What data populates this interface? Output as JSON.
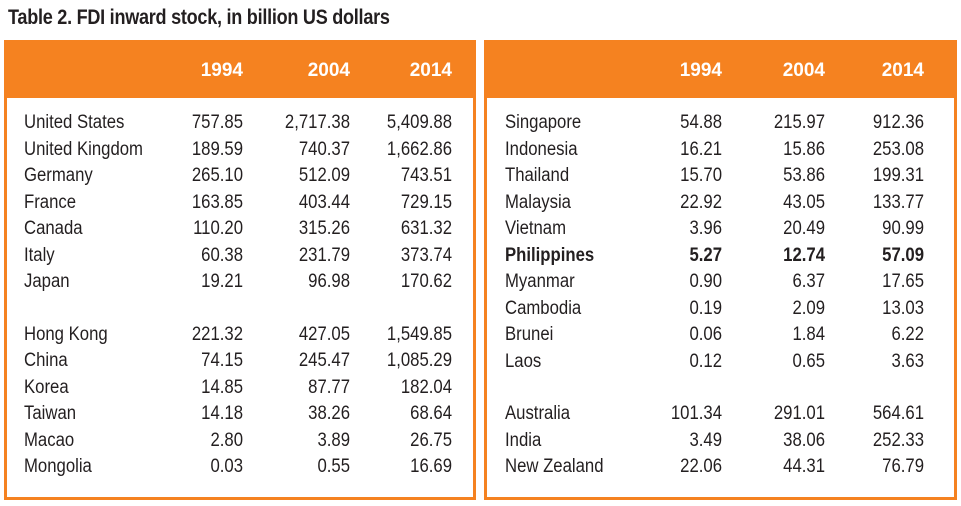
{
  "title": "Table 2. FDI inward stock, in billion US dollars",
  "years": [
    "1994",
    "2004",
    "2014"
  ],
  "colors": {
    "accent": "#f58220",
    "text": "#231f20"
  },
  "left_table": {
    "groups": [
      [
        {
          "name": "United States",
          "v1994": "757.85",
          "v2004": "2,717.38",
          "v2014": "5,409.88"
        },
        {
          "name": "United Kingdom",
          "v1994": "189.59",
          "v2004": "740.37",
          "v2014": "1,662.86"
        },
        {
          "name": "Germany",
          "v1994": "265.10",
          "v2004": "512.09",
          "v2014": "743.51"
        },
        {
          "name": "France",
          "v1994": "163.85",
          "v2004": "403.44",
          "v2014": "729.15"
        },
        {
          "name": "Canada",
          "v1994": "110.20",
          "v2004": "315.26",
          "v2014": "631.32"
        },
        {
          "name": "Italy",
          "v1994": "60.38",
          "v2004": "231.79",
          "v2014": "373.74"
        },
        {
          "name": "Japan",
          "v1994": "19.21",
          "v2004": "96.98",
          "v2014": "170.62"
        }
      ],
      [
        {
          "name": "Hong Kong",
          "v1994": "221.32",
          "v2004": "427.05",
          "v2014": "1,549.85"
        },
        {
          "name": "China",
          "v1994": "74.15",
          "v2004": "245.47",
          "v2014": "1,085.29"
        },
        {
          "name": "Korea",
          "v1994": "14.85",
          "v2004": "87.77",
          "v2014": "182.04"
        },
        {
          "name": "Taiwan",
          "v1994": "14.18",
          "v2004": "38.26",
          "v2014": "68.64"
        },
        {
          "name": "Macao",
          "v1994": "2.80",
          "v2004": "3.89",
          "v2014": "26.75"
        },
        {
          "name": "Mongolia",
          "v1994": "0.03",
          "v2004": "0.55",
          "v2014": "16.69"
        }
      ]
    ]
  },
  "right_table": {
    "groups": [
      [
        {
          "name": "Singapore",
          "v1994": "54.88",
          "v2004": "215.97",
          "v2014": "912.36"
        },
        {
          "name": "Indonesia",
          "v1994": "16.21",
          "v2004": "15.86",
          "v2014": "253.08"
        },
        {
          "name": "Thailand",
          "v1994": "15.70",
          "v2004": "53.86",
          "v2014": "199.31"
        },
        {
          "name": "Malaysia",
          "v1994": "22.92",
          "v2004": "43.05",
          "v2014": "133.77"
        },
        {
          "name": "Vietnam",
          "v1994": "3.96",
          "v2004": "20.49",
          "v2014": "90.99"
        },
        {
          "name": "Philippines",
          "v1994": "5.27",
          "v2004": "12.74",
          "v2014": "57.09",
          "bold": true
        },
        {
          "name": "Myanmar",
          "v1994": "0.90",
          "v2004": "6.37",
          "v2014": "17.65"
        },
        {
          "name": "Cambodia",
          "v1994": "0.19",
          "v2004": "2.09",
          "v2014": "13.03"
        },
        {
          "name": "Brunei",
          "v1994": "0.06",
          "v2004": "1.84",
          "v2014": "6.22"
        },
        {
          "name": "Laos",
          "v1994": "0.12",
          "v2004": "0.65",
          "v2014": "3.63"
        }
      ],
      [
        {
          "name": "Australia",
          "v1994": "101.34",
          "v2004": "291.01",
          "v2014": "564.61"
        },
        {
          "name": "India",
          "v1994": "3.49",
          "v2004": "38.06",
          "v2014": "252.33"
        },
        {
          "name": "New Zealand",
          "v1994": "22.06",
          "v2004": "44.31",
          "v2014": "76.79"
        }
      ]
    ]
  }
}
